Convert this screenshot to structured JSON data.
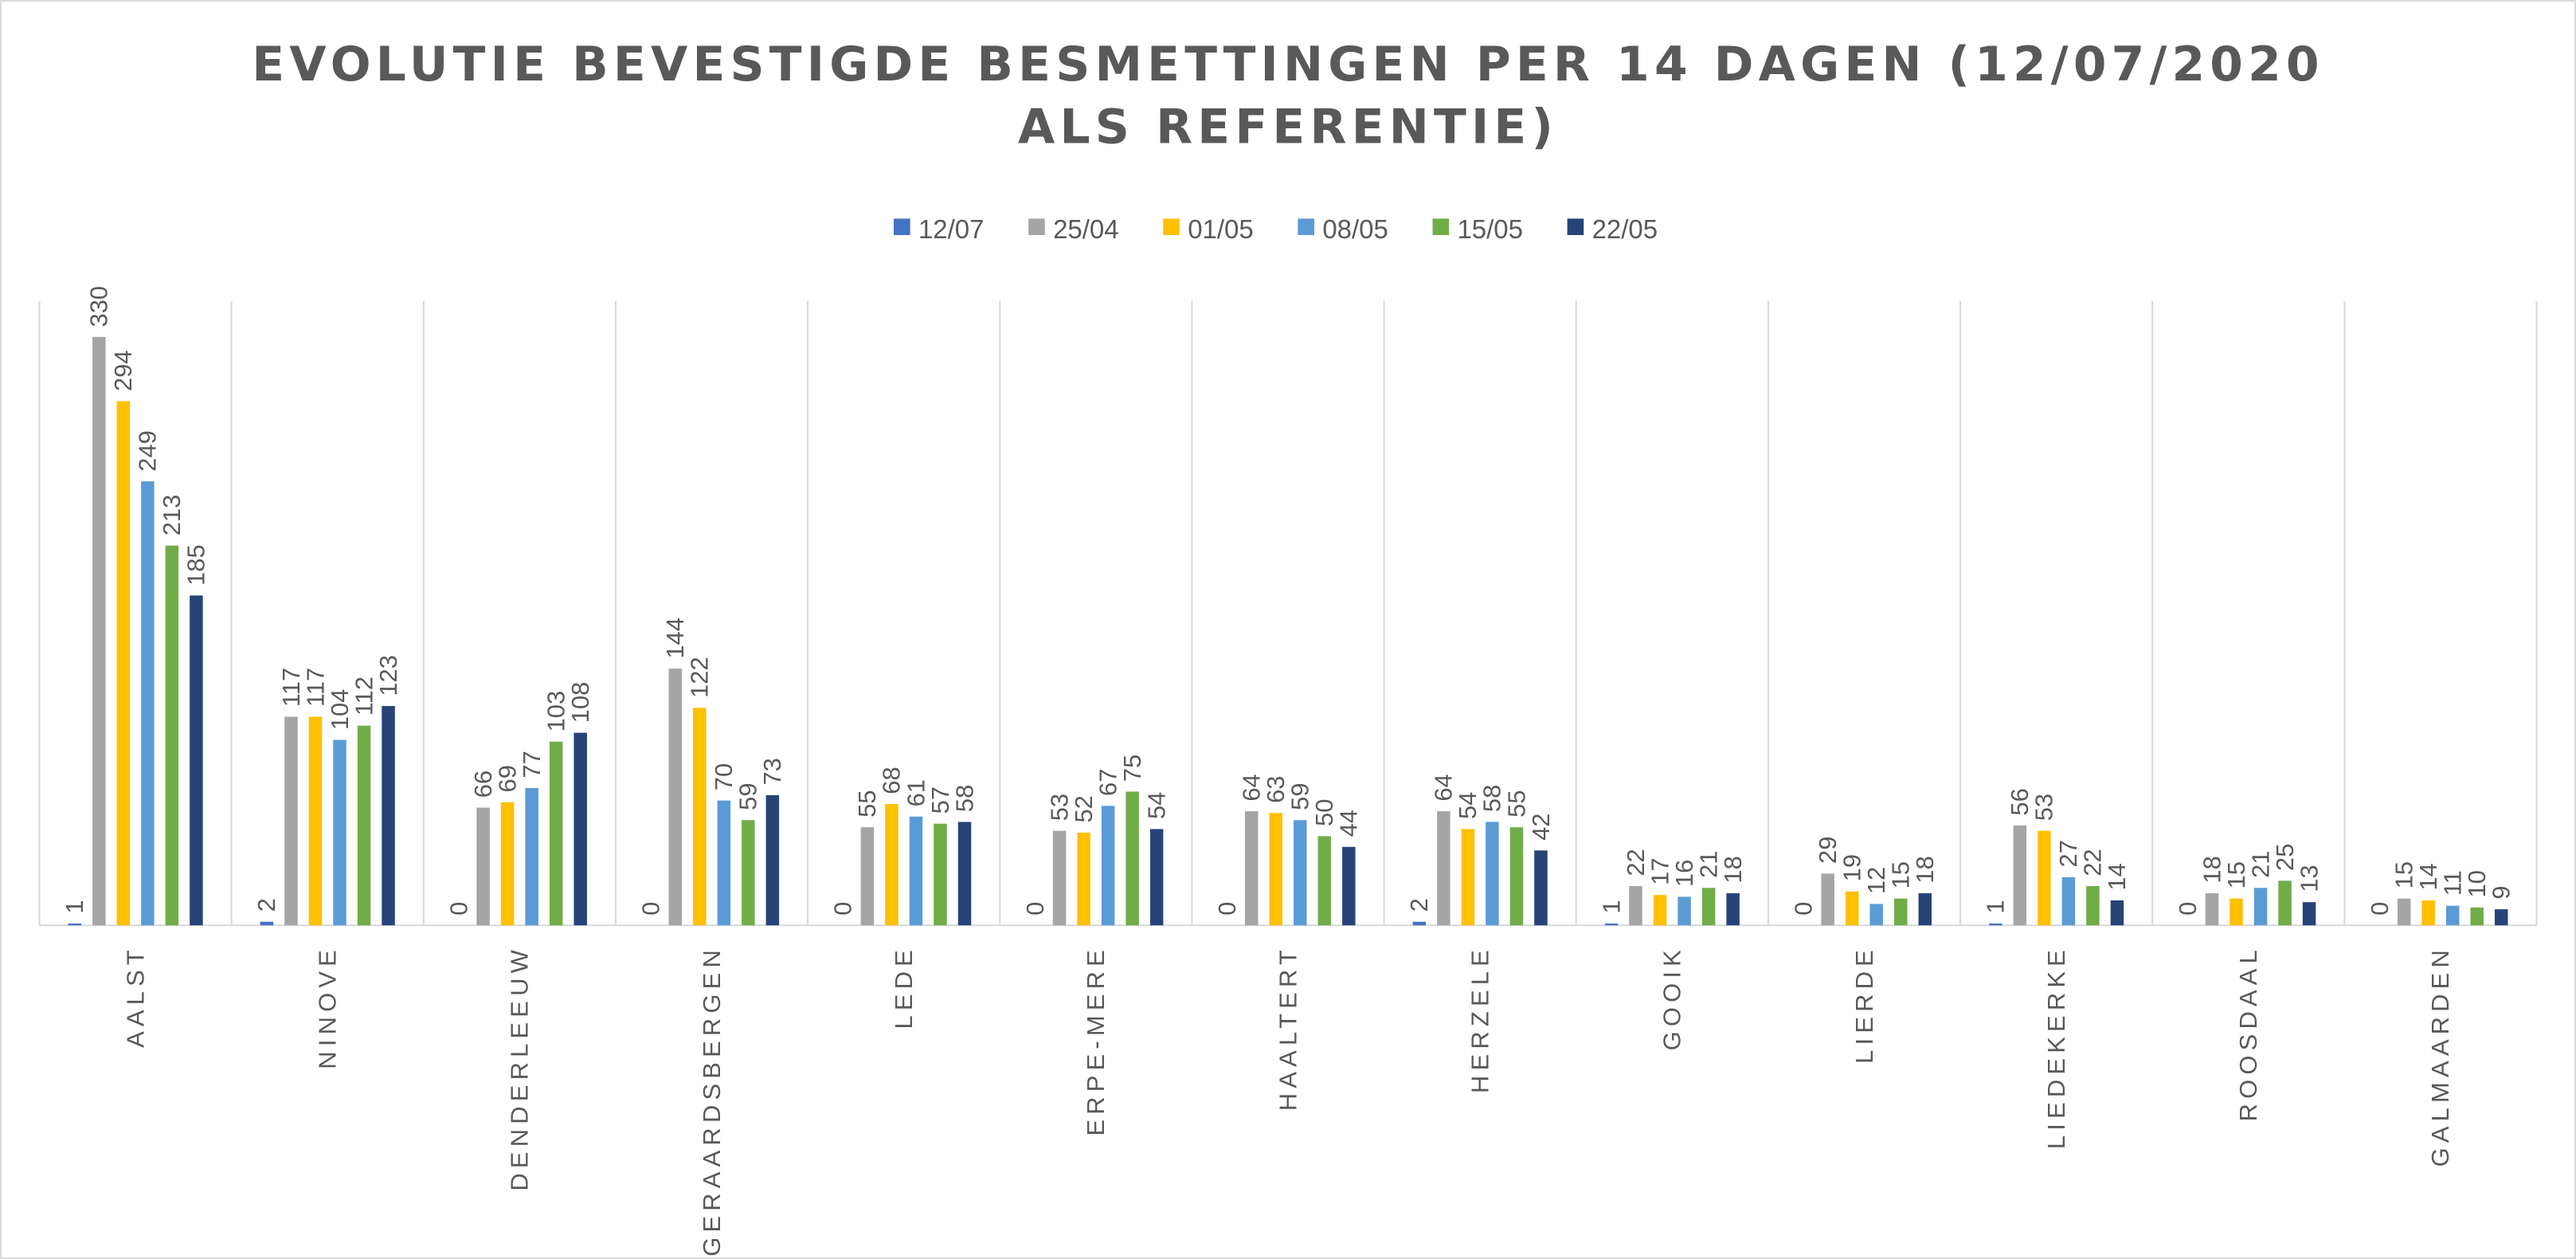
{
  "chart_data": {
    "type": "bar",
    "title": "EVOLUTIE BEVESTIGDE BESMETTINGEN PER 14 DAGEN (12/07/2020 ALS REFERENTIE)",
    "categories": [
      "AALST",
      "NINOVE",
      "DENDERLEEUW",
      "GERAARDSBERGEN",
      "LEDE",
      "ERPE-MERE",
      "HAALTERT",
      "HERZELE",
      "GOOIK",
      "LIERDE",
      "LIEDEKERKE",
      "ROOSDAAL",
      "GALMAARDEN"
    ],
    "series": [
      {
        "name": "12/07",
        "color": "#4472c4",
        "values": [
          1,
          2,
          0,
          0,
          0,
          0,
          0,
          2,
          1,
          0,
          1,
          0,
          0
        ]
      },
      {
        "name": "25/04",
        "color": "#a5a5a5",
        "values": [
          330,
          117,
          66,
          144,
          55,
          53,
          64,
          64,
          22,
          29,
          56,
          18,
          15
        ]
      },
      {
        "name": "01/05",
        "color": "#ffc000",
        "values": [
          294,
          117,
          69,
          122,
          68,
          52,
          63,
          54,
          17,
          19,
          53,
          15,
          14
        ]
      },
      {
        "name": "08/05",
        "color": "#5b9bd5",
        "values": [
          249,
          104,
          77,
          70,
          61,
          67,
          59,
          58,
          16,
          12,
          27,
          21,
          11
        ]
      },
      {
        "name": "15/05",
        "color": "#70ad47",
        "values": [
          213,
          112,
          103,
          59,
          57,
          75,
          50,
          55,
          21,
          15,
          22,
          25,
          10
        ]
      },
      {
        "name": "22/05",
        "color": "#264478",
        "values": [
          185,
          123,
          108,
          73,
          58,
          54,
          44,
          42,
          18,
          18,
          14,
          13,
          9
        ]
      }
    ],
    "legend": "top"
  }
}
